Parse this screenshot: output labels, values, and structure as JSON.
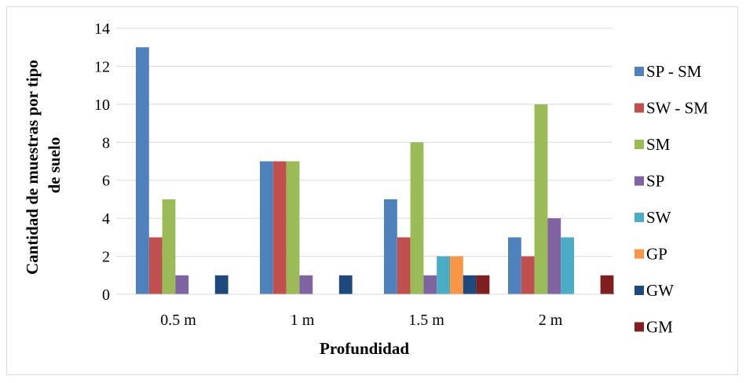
{
  "chart_data": {
    "type": "bar",
    "title": "",
    "xlabel": "Profundidad",
    "ylabel": "Cantidad de muestras por tipo de suelo",
    "ylabel_lines": [
      "Cantidad de muestras por tipo",
      "de suelo"
    ],
    "ylim": [
      0,
      14
    ],
    "yticks": [
      "0",
      "2",
      "4",
      "6",
      "8",
      "10",
      "12",
      "14"
    ],
    "grid": "horizontal",
    "legend_position": "right",
    "categories": [
      "0.5 m",
      "1 m",
      "1.5 m",
      "2 m"
    ],
    "series": [
      {
        "name": "SP - SM",
        "color": "#4f81bd",
        "values": [
          13,
          7,
          5,
          3
        ]
      },
      {
        "name": "SW - SM",
        "color": "#c0504d",
        "values": [
          3,
          7,
          3,
          2
        ]
      },
      {
        "name": "SM",
        "color": "#9bbb59",
        "values": [
          5,
          7,
          8,
          10
        ]
      },
      {
        "name": "SP",
        "color": "#8064a2",
        "values": [
          1,
          1,
          1,
          4
        ]
      },
      {
        "name": "SW",
        "color": "#4bacc6",
        "values": [
          0,
          0,
          2,
          3
        ]
      },
      {
        "name": "GP",
        "color": "#f79646",
        "values": [
          0,
          0,
          2,
          0
        ]
      },
      {
        "name": "GW",
        "color": "#1f497d",
        "values": [
          1,
          1,
          1,
          0
        ]
      },
      {
        "name": "GM",
        "color": "#7f1f1f",
        "values": [
          0,
          0,
          1,
          1
        ]
      }
    ]
  }
}
